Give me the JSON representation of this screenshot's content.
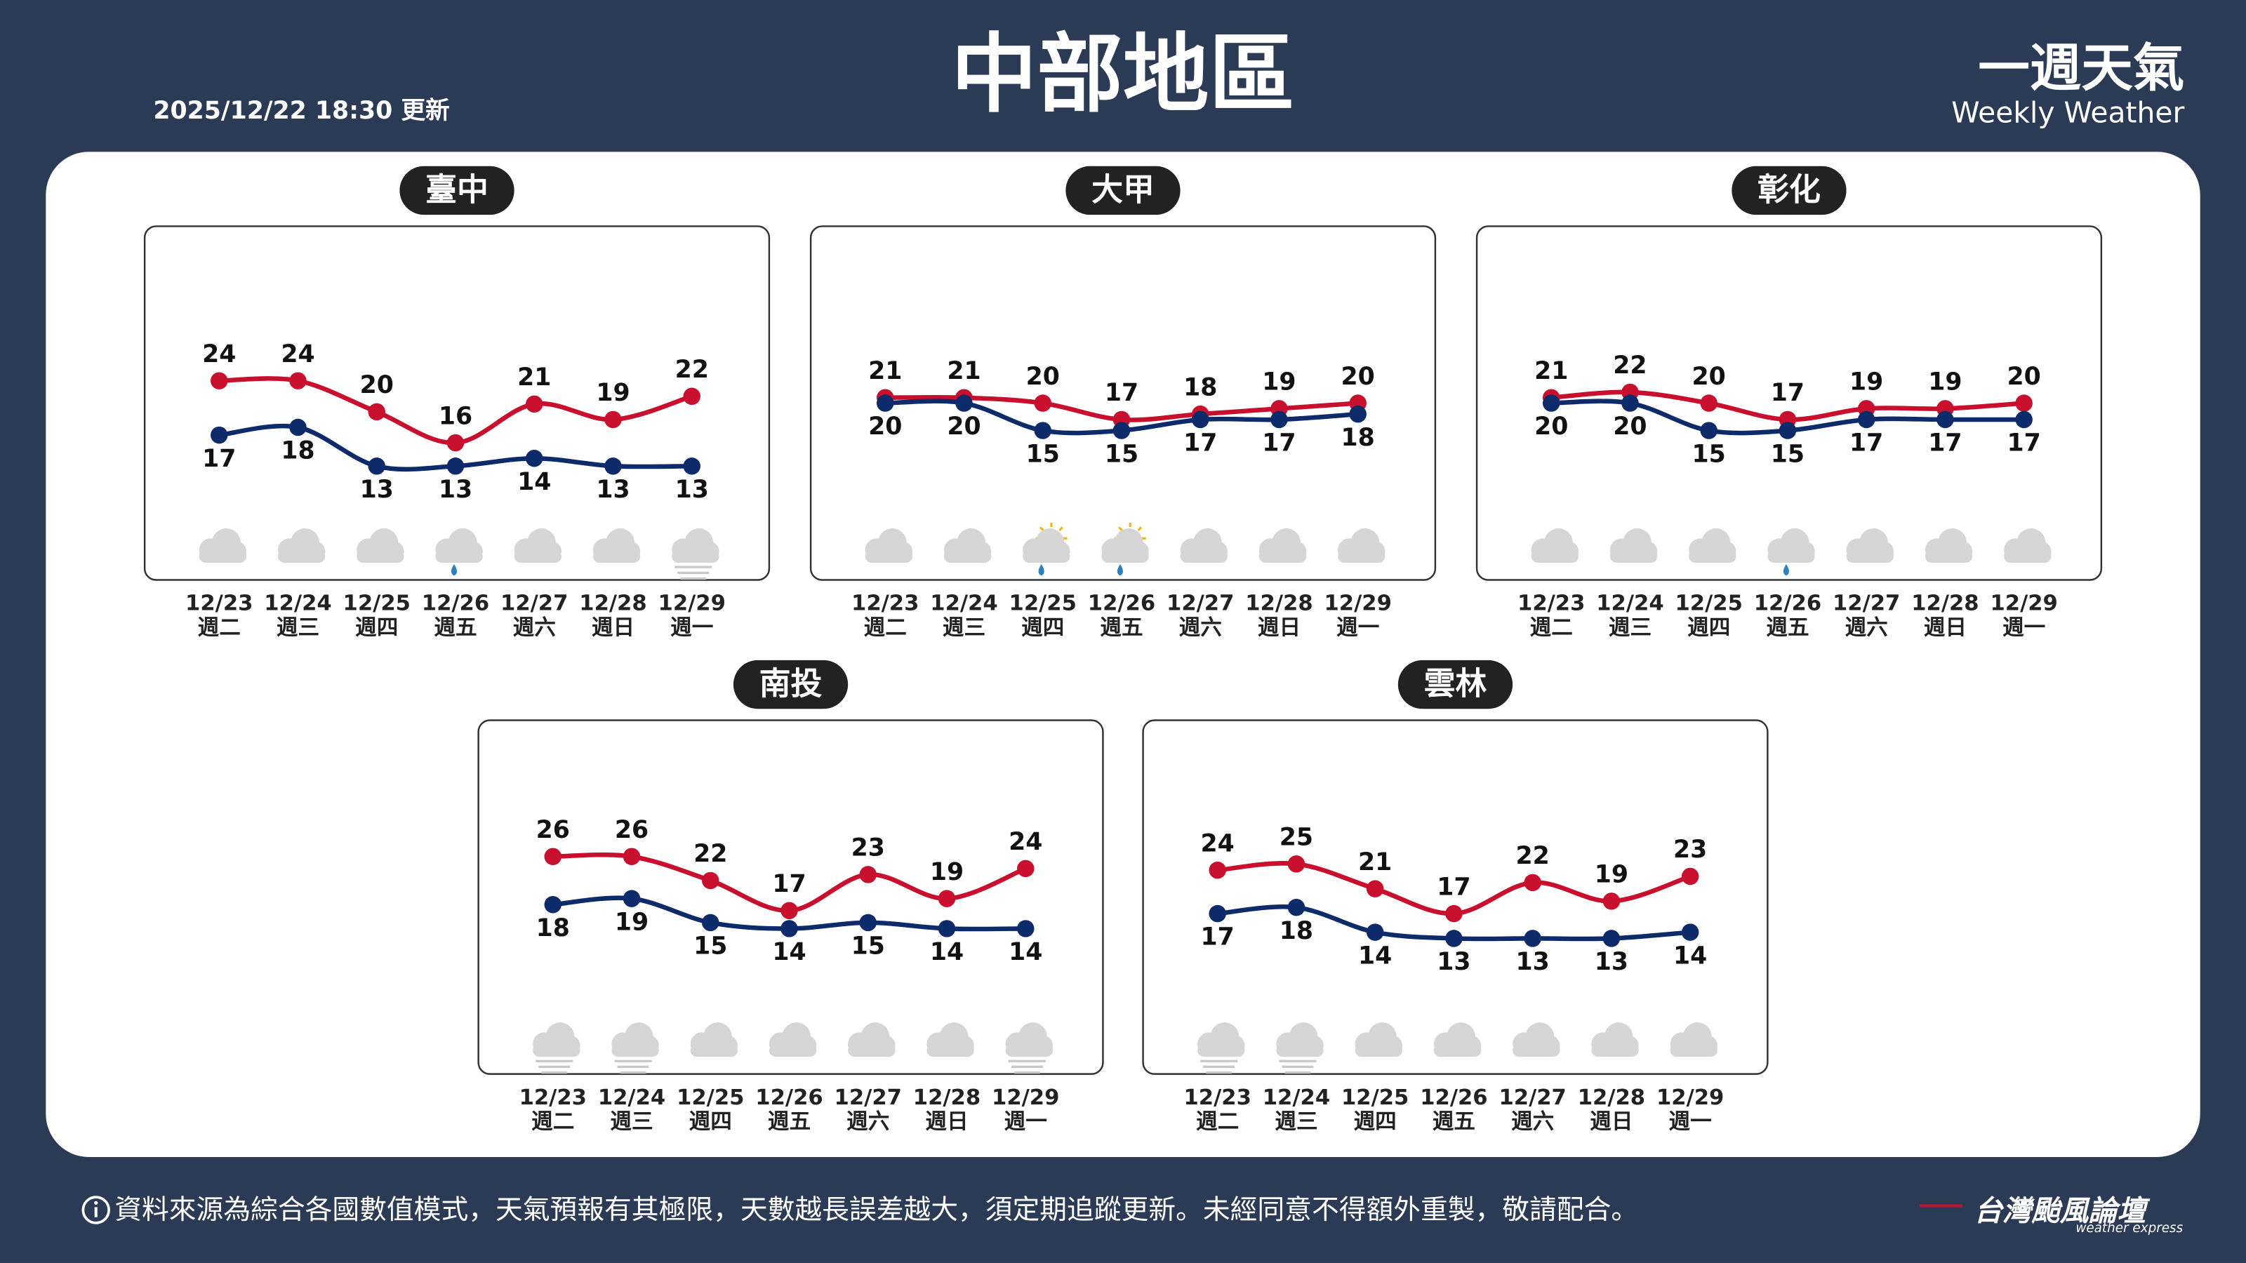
{
  "header": {
    "title": "中部地區",
    "updated": "2025/12/22 18:30 更新",
    "brand_zh": "一週天氣",
    "brand_en": "Weekly Weather"
  },
  "footer": {
    "note": "資料來源為綜合各國數值模式，天氣預報有其極限，天數越長誤差越大，須定期追蹤更新。未經同意不得額外重製，敬請配合。",
    "logo": "台灣颱風論壇",
    "logo_sub": "weather express"
  },
  "chart_data": [
    {
      "type": "line",
      "title": "臺中",
      "categories": [
        "12/23",
        "12/24",
        "12/25",
        "12/26",
        "12/27",
        "12/28",
        "12/29"
      ],
      "weekdays": [
        "週二",
        "週三",
        "週四",
        "週五",
        "週六",
        "週日",
        "週一"
      ],
      "weather": [
        "cloudy",
        "cloudy",
        "cloudy",
        "rain",
        "cloudy",
        "cloudy",
        "fog"
      ],
      "ylim": [
        7,
        31
      ],
      "series": [
        {
          "color": "#c8102e",
          "values": [
            24,
            24,
            20,
            16,
            21,
            19,
            22
          ]
        },
        {
          "color": "#0d2a6b",
          "values": [
            17,
            18,
            13,
            13,
            14,
            13,
            13
          ]
        }
      ]
    },
    {
      "type": "line",
      "title": "大甲",
      "categories": [
        "12/23",
        "12/24",
        "12/25",
        "12/26",
        "12/27",
        "12/28",
        "12/29"
      ],
      "weekdays": [
        "週二",
        "週三",
        "週四",
        "週五",
        "週六",
        "週日",
        "週一"
      ],
      "weather": [
        "cloudy",
        "cloudy",
        "sun-rain",
        "sun-rain",
        "cloudy",
        "cloudy",
        "cloudy"
      ],
      "ylim": [
        0,
        34
      ],
      "series": [
        {
          "color": "#c8102e",
          "values": [
            21,
            21,
            20,
            17,
            18,
            19,
            20
          ]
        },
        {
          "color": "#0d2a6b",
          "values": [
            20,
            20,
            15,
            15,
            17,
            17,
            18
          ]
        }
      ]
    },
    {
      "type": "line",
      "title": "彰化",
      "categories": [
        "12/23",
        "12/24",
        "12/25",
        "12/26",
        "12/27",
        "12/28",
        "12/29"
      ],
      "weekdays": [
        "週二",
        "週三",
        "週四",
        "週五",
        "週六",
        "週日",
        "週一"
      ],
      "weather": [
        "cloudy",
        "cloudy",
        "cloudy",
        "rain",
        "cloudy",
        "cloudy",
        "cloudy"
      ],
      "ylim": [
        0,
        34
      ],
      "series": [
        {
          "color": "#c8102e",
          "values": [
            21,
            22,
            20,
            17,
            19,
            19,
            20
          ]
        },
        {
          "color": "#0d2a6b",
          "values": [
            20,
            20,
            15,
            15,
            17,
            17,
            17
          ]
        }
      ]
    },
    {
      "type": "line",
      "title": "南投",
      "categories": [
        "12/23",
        "12/24",
        "12/25",
        "12/26",
        "12/27",
        "12/28",
        "12/29"
      ],
      "weekdays": [
        "週二",
        "週三",
        "週四",
        "週五",
        "週六",
        "週日",
        "週一"
      ],
      "weather": [
        "fog",
        "fog",
        "cloudy",
        "cloudy",
        "cloudy",
        "cloudy",
        "fog"
      ],
      "ylim": [
        1,
        32
      ],
      "series": [
        {
          "color": "#c8102e",
          "values": [
            26,
            26,
            22,
            17,
            23,
            19,
            24
          ]
        },
        {
          "color": "#0d2a6b",
          "values": [
            18,
            19,
            15,
            14,
            15,
            14,
            14
          ]
        }
      ]
    },
    {
      "type": "line",
      "title": "雲林",
      "categories": [
        "12/23",
        "12/24",
        "12/25",
        "12/26",
        "12/27",
        "12/28",
        "12/29"
      ],
      "weekdays": [
        "週二",
        "週三",
        "週四",
        "週五",
        "週六",
        "週日",
        "週一"
      ],
      "weather": [
        "fog",
        "fog",
        "cloudy",
        "cloudy",
        "cloudy",
        "cloudy",
        "cloudy"
      ],
      "ylim": [
        2,
        32
      ],
      "series": [
        {
          "color": "#c8102e",
          "values": [
            24,
            25,
            21,
            17,
            22,
            19,
            23
          ]
        },
        {
          "color": "#0d2a6b",
          "values": [
            17,
            18,
            14,
            13,
            13,
            13,
            14
          ]
        }
      ]
    }
  ]
}
